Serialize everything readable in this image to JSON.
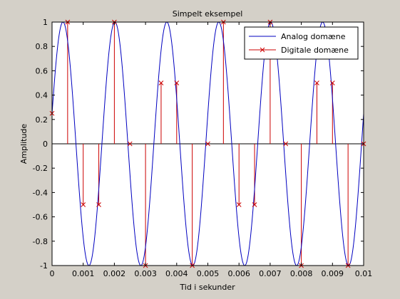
{
  "chart_data": {
    "type": "line",
    "title": "Simpelt eksempel",
    "xlabel": "Tid i sekunder",
    "ylabel": "Amplitude",
    "xlim": [
      0,
      0.01
    ],
    "ylim": [
      -1,
      1
    ],
    "xticks": [
      0,
      0.001,
      0.002,
      0.003,
      0.004,
      0.005,
      0.006,
      0.007,
      0.008,
      0.009,
      0.01
    ],
    "xtick_labels": [
      "0",
      "0.001",
      "0.002",
      "0.003",
      "0.004",
      "0.005",
      "0.006",
      "0.007",
      "0.008",
      "0.009",
      "0.01"
    ],
    "yticks": [
      -1,
      -0.8,
      -0.6,
      -0.4,
      -0.2,
      0,
      0.2,
      0.4,
      0.6,
      0.8,
      1
    ],
    "ytick_labels": [
      "-1",
      "-0.8",
      "-0.6",
      "-0.4",
      "-0.2",
      "0",
      "0.2",
      "0.4",
      "0.6",
      "0.8",
      "1"
    ],
    "grid": false,
    "legend_position": "top-right",
    "series": [
      {
        "name": "Analog domæne",
        "style": "line",
        "color": "#0000c0",
        "function": "sin",
        "amplitude": 1,
        "frequency_hz": 600,
        "phase_rad": 0.25,
        "x_range": [
          0,
          0.01
        ]
      },
      {
        "name": "Digitale domæne",
        "style": "stem",
        "color": "#cc0000",
        "marker": "x",
        "x": [
          0,
          0.0005,
          0.001,
          0.0015,
          0.002,
          0.0025,
          0.003,
          0.0035,
          0.004,
          0.0045,
          0.005,
          0.0055,
          0.006,
          0.0065,
          0.007,
          0.0075,
          0.008,
          0.0085,
          0.009,
          0.0095,
          0.01
        ],
        "y": [
          0.25,
          1.0,
          -0.5,
          -0.5,
          1.0,
          0,
          -1.0,
          0.5,
          0.5,
          -1.0,
          0,
          1.0,
          -0.5,
          -0.5,
          1.0,
          0,
          -1.0,
          0.5,
          0.5,
          -1.0,
          0
        ]
      }
    ]
  }
}
